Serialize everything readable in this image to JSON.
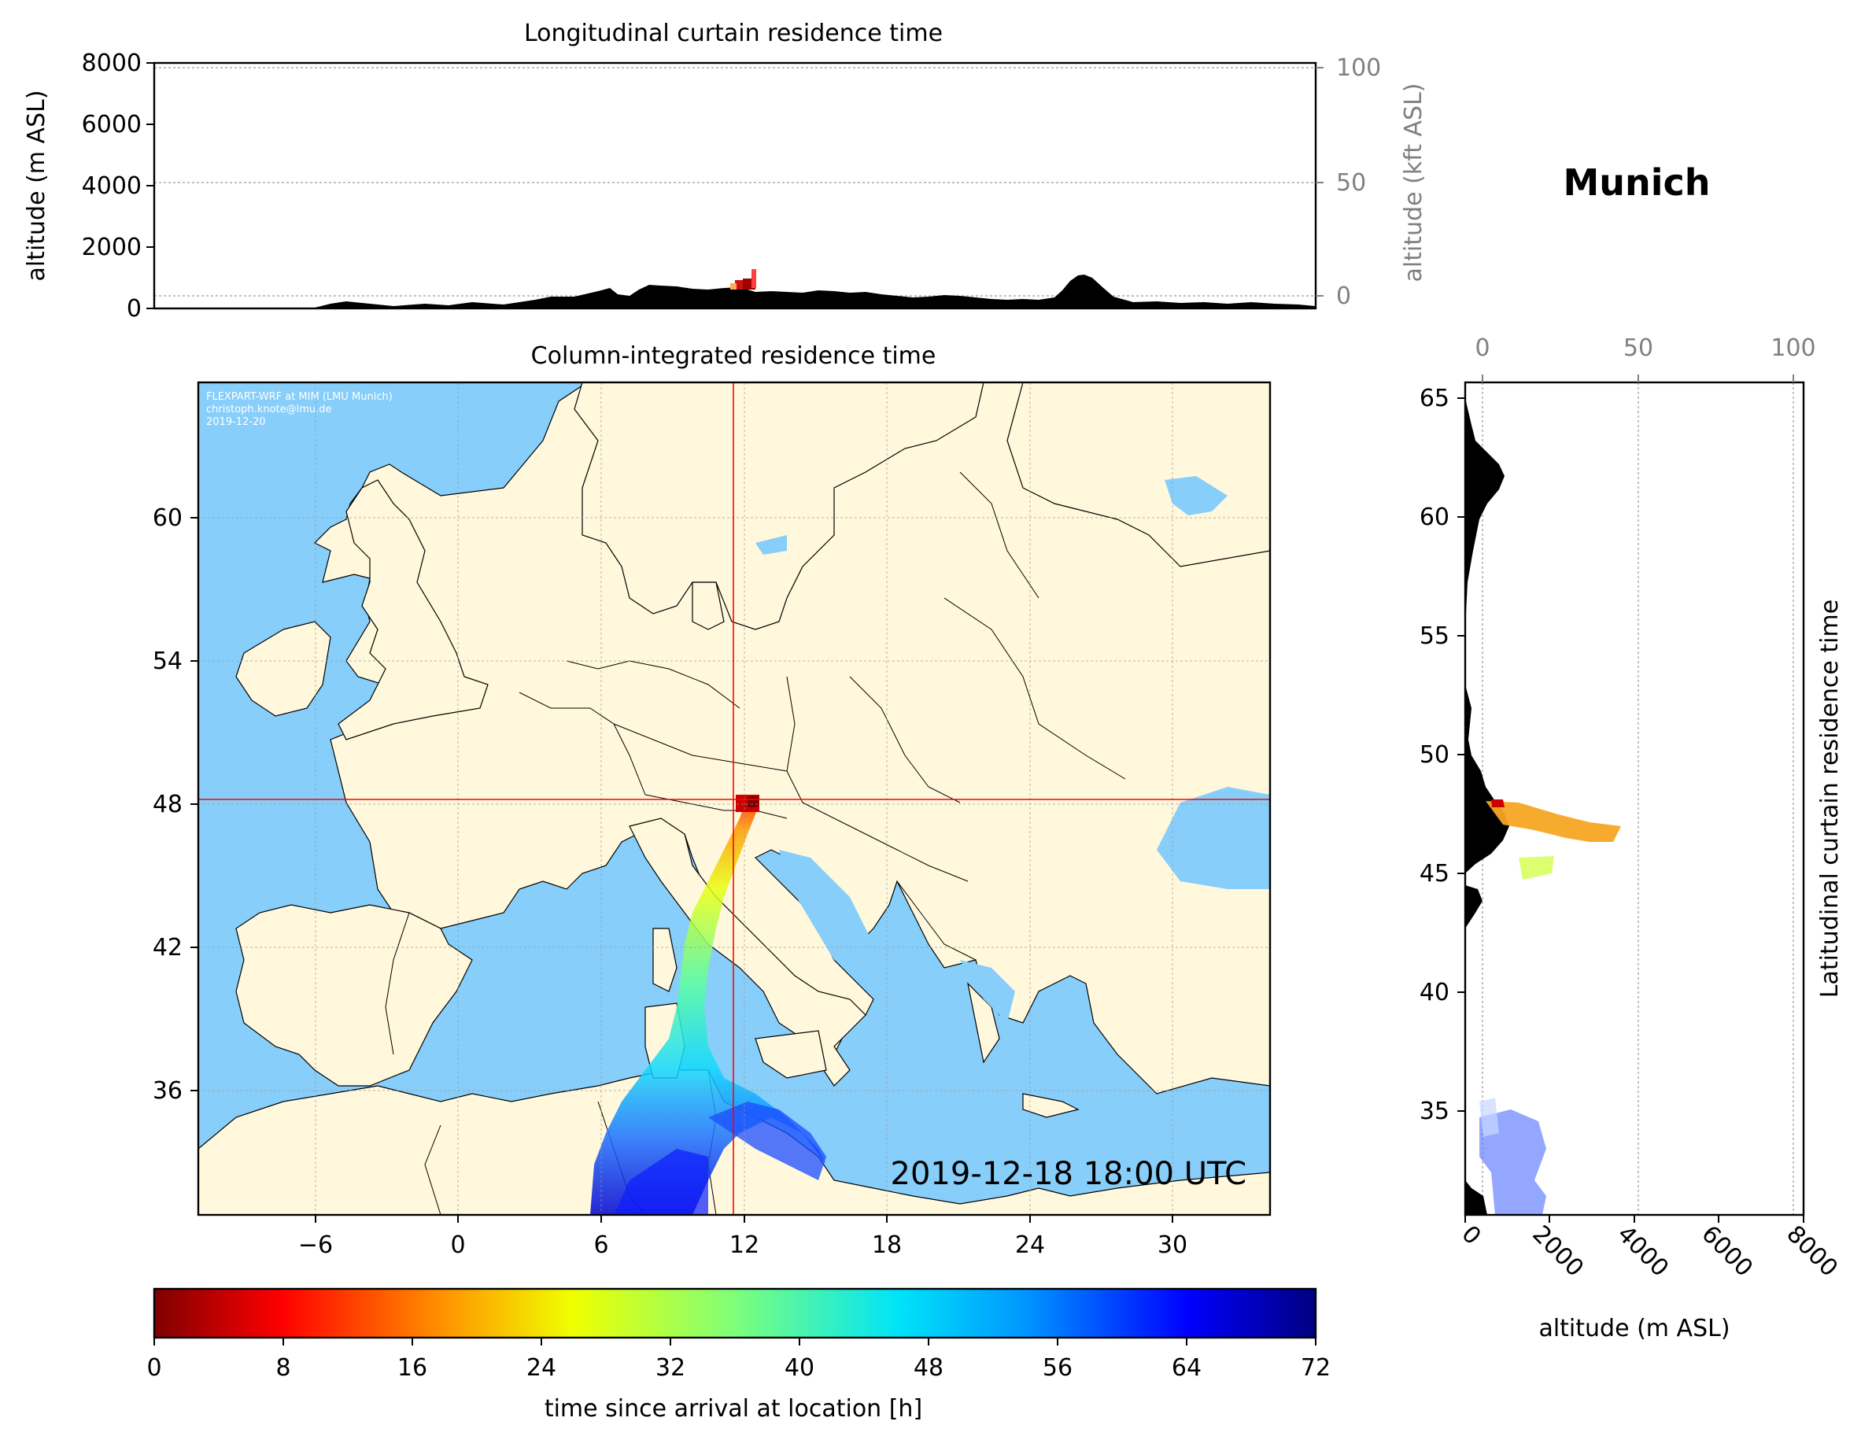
{
  "location_title": "Munich",
  "timestamp": "2019-12-18 18:00 UTC",
  "credit": {
    "line1": "FLEXPART-WRF at MIM (LMU Munich)",
    "line2": "christoph.knote@lmu.de",
    "line3": "2019-12-20"
  },
  "colors": {
    "ocean": "#87cefa",
    "land": "#fff8dc",
    "terrain": "#000000",
    "crosshair": "#ff0000"
  },
  "longitudinal_panel": {
    "title": "Longitudinal curtain residence time",
    "ylabel_left": "altitude (m ASL)",
    "ylabel_right": "altitude (kft ASL)",
    "yticks_left": [
      "0",
      "2000",
      "4000",
      "6000",
      "8000"
    ],
    "yticks_right": [
      "0",
      "50",
      "100"
    ]
  },
  "map_panel": {
    "title": "Column-integrated residence time",
    "xticks": [
      "−6",
      "0",
      "6",
      "12",
      "18",
      "24",
      "30"
    ],
    "yticks": [
      "36",
      "42",
      "48",
      "54",
      "60"
    ],
    "crosshair_lon": 11.6,
    "crosshair_lat": 48.1
  },
  "latitudinal_panel": {
    "ylabel": "Latitudinal curtain residence time",
    "xlabel": "altitude (m ASL)",
    "xticks_bottom": [
      "0",
      "2000",
      "4000",
      "6000",
      "8000"
    ],
    "xticks_top": [
      "0",
      "50",
      "100"
    ],
    "yticks": [
      "35",
      "40",
      "45",
      "50",
      "55",
      "60",
      "65"
    ]
  },
  "colorbar": {
    "label": "time since arrival at location [h]",
    "ticks": [
      "0",
      "8",
      "16",
      "24",
      "32",
      "40",
      "48",
      "56",
      "64",
      "72"
    ],
    "min": 0,
    "max": 72,
    "colormap": "jet_r"
  }
}
